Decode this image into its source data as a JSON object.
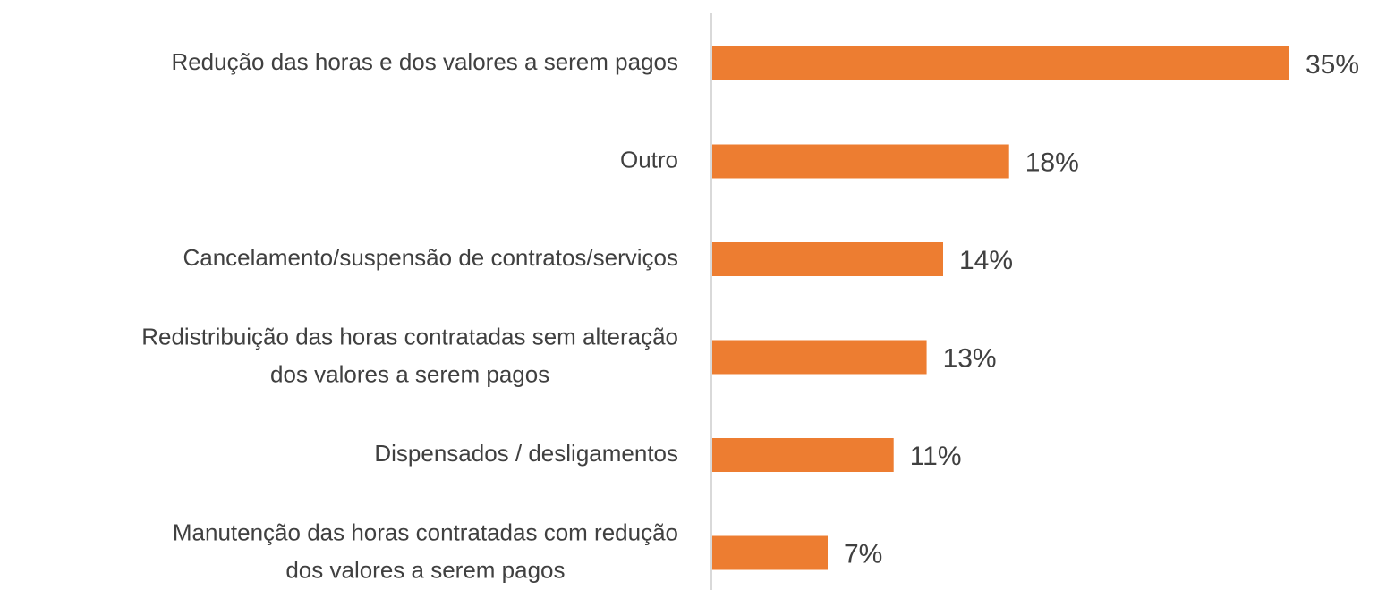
{
  "chart_data": {
    "type": "bar",
    "orientation": "horizontal",
    "categories": [
      [
        "Redução das horas e dos valores a serem pagos"
      ],
      [
        "Outro"
      ],
      [
        "Cancelamento/suspensão de contratos/serviços"
      ],
      [
        "Redistribuição das horas contratadas sem alteração",
        "dos valores a serem pagos"
      ],
      [
        "Dispensados / desligamentos"
      ],
      [
        "Manutenção das horas contratadas com redução",
        "dos valores a serem pagos"
      ]
    ],
    "values": [
      35,
      18,
      14,
      13,
      11,
      7
    ],
    "value_labels": [
      "35%",
      "18%",
      "14%",
      "13%",
      "11%",
      "7%"
    ],
    "color": "#ed7d31"
  }
}
